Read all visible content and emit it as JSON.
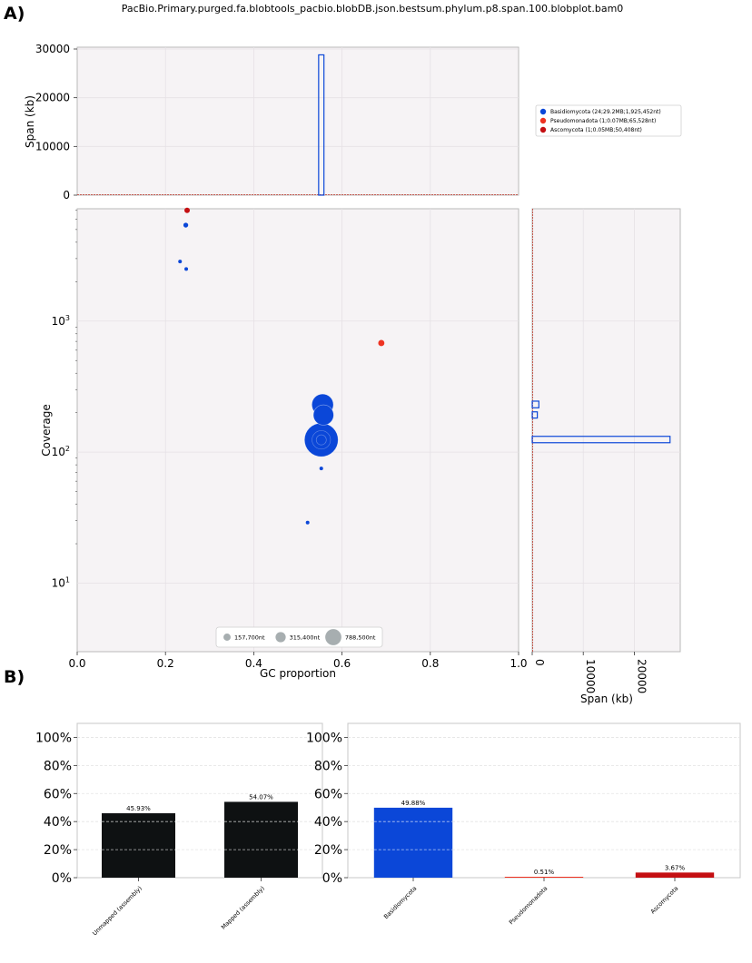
{
  "panel_a_label": "A)",
  "panel_b_label": "B)",
  "colors": {
    "basidiomycota": "#0b47d8",
    "pseudomonadota": "#ee3322",
    "ascomycota": "#c40f12",
    "mapped_bars": "#0e1112",
    "plot_bg": "#f6f3f5"
  },
  "chart_data": [
    {
      "id": "blobplot",
      "type": "scatter",
      "title": "PacBio.Primary.purged.fa.blobtools_pacbio.blobDB.json.bestsum.phylum.p8.span.100.blobplot.bam0",
      "xlabel": "GC proportion",
      "ylabel": "Coverage",
      "xlim": [
        0.0,
        1.0
      ],
      "ylim": [
        3,
        7200
      ],
      "yscale": "log",
      "x_ticks": [
        "0.0",
        "0.2",
        "0.4",
        "0.6",
        "0.8",
        "1.0"
      ],
      "y_ticks": [
        "10^1",
        "10^2",
        "10^3"
      ],
      "grid": true,
      "series": [
        {
          "name": "Basidiomycota (24;29.2MB;1,925,452nt)",
          "color_key": "basidiomycota",
          "points": [
            {
              "gc": 0.246,
              "cov": 5400,
              "span_nt": 40000
            },
            {
              "gc": 0.233,
              "cov": 2850,
              "span_nt": 15000
            },
            {
              "gc": 0.247,
              "cov": 2500,
              "span_nt": 15000
            },
            {
              "gc": 0.556,
              "cov": 230,
              "span_nt": 790000
            },
            {
              "gc": 0.558,
              "cov": 192,
              "span_nt": 700000
            },
            {
              "gc": 0.553,
              "cov": 124,
              "span_nt": 1925452
            },
            {
              "gc": 0.553,
              "cov": 75,
              "span_nt": 12000
            },
            {
              "gc": 0.522,
              "cov": 29,
              "span_nt": 20000
            }
          ]
        },
        {
          "name": "Pseudomonadota (1;0.07MB;65,528nt)",
          "color_key": "pseudomonadota",
          "points": [
            {
              "gc": 0.689,
              "cov": 680,
              "span_nt": 65528
            }
          ]
        },
        {
          "name": "Ascomycota (1;0.05MB;50,408nt)",
          "color_key": "ascomycota",
          "points": [
            {
              "gc": 0.249,
              "cov": 7000,
              "span_nt": 50408
            }
          ]
        }
      ],
      "size_legend": [
        "157,700nt",
        "315,400nt",
        "788,500nt"
      ],
      "legend_position": "top-right"
    },
    {
      "id": "gc_histogram",
      "type": "bar",
      "ylabel": "Span (kb)",
      "ylim": [
        0,
        30000
      ],
      "y_ticks": [
        "0",
        "10000",
        "20000",
        "30000"
      ],
      "bins": [
        {
          "gc_from": 0.547,
          "gc_to": 0.559,
          "span_kb": 28800,
          "color_key": "basidiomycota"
        }
      ]
    },
    {
      "id": "coverage_histogram",
      "type": "bar",
      "xlabel": "Span (kb)",
      "xlim": [
        0,
        29000
      ],
      "x_ticks": [
        "0",
        "10000",
        "20000"
      ],
      "bins": [
        {
          "cov_from": 218,
          "cov_to": 245,
          "span_kb": 1300,
          "color_key": "basidiomycota"
        },
        {
          "cov_from": 182,
          "cov_to": 203,
          "span_kb": 1000,
          "color_key": "basidiomycota"
        },
        {
          "cov_from": 118,
          "cov_to": 132,
          "span_kb": 27000,
          "color_key": "basidiomycota"
        }
      ]
    },
    {
      "id": "mapping_bar",
      "type": "bar",
      "categories": [
        "Unmapped (assembly)",
        "Mapped (assembly)"
      ],
      "values": [
        45.93,
        54.07
      ],
      "value_labels": [
        "45.93%",
        "54.07%"
      ],
      "ylim": [
        0,
        110
      ],
      "y_ticks": [
        "0%",
        "20%",
        "40%",
        "60%",
        "80%",
        "100%"
      ],
      "color_key": "mapped_bars"
    },
    {
      "id": "taxon_bar",
      "type": "bar",
      "categories": [
        "Basidiomycota",
        "Pseudomonadota",
        "Ascomycota"
      ],
      "values": [
        49.88,
        0.51,
        3.67
      ],
      "value_labels": [
        "49.88%",
        "0.51%",
        "3.67%"
      ],
      "ylim": [
        0,
        110
      ],
      "y_ticks": [
        "0%",
        "20%",
        "40%",
        "60%",
        "80%",
        "100%"
      ],
      "color_keys": [
        "basidiomycota",
        "pseudomonadota",
        "ascomycota"
      ]
    }
  ]
}
